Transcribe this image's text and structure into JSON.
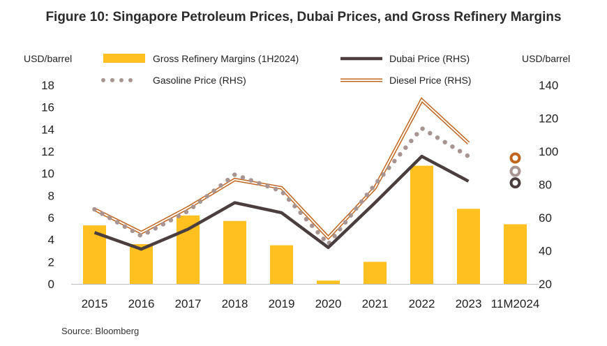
{
  "title": "Figure 10: Singapore Petroleum Prices, Dubai Prices, and Gross Refinery Margins",
  "source": "Source: Bloomberg",
  "chart_data": {
    "type": "bar",
    "categories": [
      "2015",
      "2016",
      "2017",
      "2018",
      "2019",
      "2020",
      "2021",
      "2022",
      "2023",
      "11M2024"
    ],
    "y_left": {
      "label": "USD/barrel",
      "lim": [
        0,
        18
      ],
      "ticks": [
        0,
        2,
        4,
        6,
        8,
        10,
        12,
        14,
        16,
        18
      ]
    },
    "y_right": {
      "label": "USD/barrel",
      "lim": [
        20,
        140
      ],
      "ticks": [
        20,
        40,
        60,
        80,
        100,
        120,
        140
      ]
    },
    "series": [
      {
        "name": "Gross Refinery Margins (1H2024)",
        "type": "bar",
        "axis": "left",
        "color": "#FFC020",
        "values": [
          5.3,
          3.6,
          6.2,
          5.7,
          3.5,
          0.3,
          2.0,
          10.7,
          6.8,
          5.4
        ]
      },
      {
        "name": "Dubai Price (RHS)",
        "type": "line",
        "axis": "right",
        "color": "#4A3E3E",
        "values": [
          51,
          41,
          53,
          69,
          63,
          42,
          69,
          97,
          82,
          null
        ],
        "standalone_last": 81
      },
      {
        "name": "Gasoline Price (RHS)",
        "type": "dotted-line",
        "axis": "right",
        "color": "#A89592",
        "values": [
          65,
          49,
          64,
          86,
          76,
          44,
          80,
          114,
          97,
          null
        ],
        "standalone_last": 88
      },
      {
        "name": "Diesel Price (RHS)",
        "type": "double-line",
        "axis": "right",
        "color": "#C0651E",
        "values": [
          65,
          51,
          66,
          83,
          78,
          48,
          78,
          131,
          105,
          null
        ],
        "standalone_last": 96
      }
    ],
    "legend": "top"
  }
}
